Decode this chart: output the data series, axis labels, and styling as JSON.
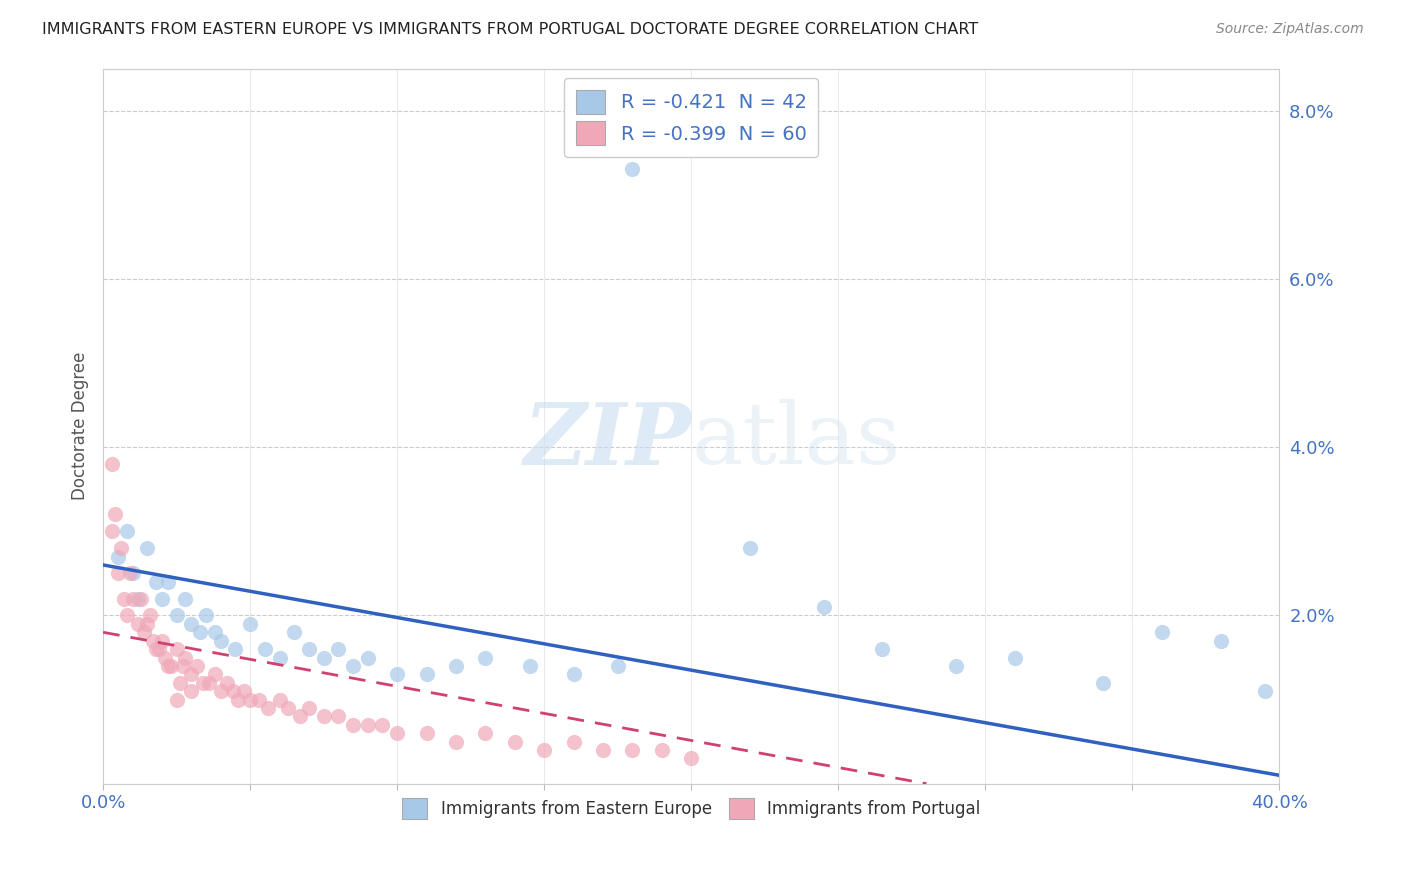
{
  "title": "IMMIGRANTS FROM EASTERN EUROPE VS IMMIGRANTS FROM PORTUGAL DOCTORATE DEGREE CORRELATION CHART",
  "source": "Source: ZipAtlas.com",
  "ylabel": "Doctorate Degree",
  "xlim": [
    0.0,
    0.4
  ],
  "ylim": [
    0.0,
    0.085
  ],
  "ytick_vals": [
    0.0,
    0.02,
    0.04,
    0.06,
    0.08
  ],
  "ytick_labels": [
    "",
    "2.0%",
    "4.0%",
    "6.0%",
    "8.0%"
  ],
  "xtick_vals": [
    0.0,
    0.05,
    0.1,
    0.15,
    0.2,
    0.25,
    0.3,
    0.35,
    0.4
  ],
  "xtick_labels": [
    "0.0%",
    "",
    "",
    "",
    "",
    "",
    "",
    "",
    "40.0%"
  ],
  "legend1_label": "R = -0.421  N = 42",
  "legend2_label": "R = -0.399  N = 60",
  "legend_bottom1": "Immigrants from Eastern Europe",
  "legend_bottom2": "Immigrants from Portugal",
  "blue_color": "#a8c8e8",
  "pink_color": "#f0a8b8",
  "blue_line_color": "#3060c0",
  "pink_line_color": "#d04070",
  "watermark_zip": "ZIP",
  "watermark_atlas": "atlas",
  "blue_scatter": [
    [
      0.005,
      0.027
    ],
    [
      0.008,
      0.03
    ],
    [
      0.01,
      0.025
    ],
    [
      0.012,
      0.022
    ],
    [
      0.015,
      0.028
    ],
    [
      0.018,
      0.024
    ],
    [
      0.02,
      0.022
    ],
    [
      0.022,
      0.024
    ],
    [
      0.025,
      0.02
    ],
    [
      0.028,
      0.022
    ],
    [
      0.03,
      0.019
    ],
    [
      0.033,
      0.018
    ],
    [
      0.035,
      0.02
    ],
    [
      0.038,
      0.018
    ],
    [
      0.04,
      0.017
    ],
    [
      0.045,
      0.016
    ],
    [
      0.05,
      0.019
    ],
    [
      0.055,
      0.016
    ],
    [
      0.06,
      0.015
    ],
    [
      0.065,
      0.018
    ],
    [
      0.07,
      0.016
    ],
    [
      0.075,
      0.015
    ],
    [
      0.08,
      0.016
    ],
    [
      0.085,
      0.014
    ],
    [
      0.09,
      0.015
    ],
    [
      0.1,
      0.013
    ],
    [
      0.11,
      0.013
    ],
    [
      0.12,
      0.014
    ],
    [
      0.13,
      0.015
    ],
    [
      0.145,
      0.014
    ],
    [
      0.16,
      0.013
    ],
    [
      0.175,
      0.014
    ],
    [
      0.18,
      0.073
    ],
    [
      0.22,
      0.028
    ],
    [
      0.245,
      0.021
    ],
    [
      0.265,
      0.016
    ],
    [
      0.29,
      0.014
    ],
    [
      0.31,
      0.015
    ],
    [
      0.34,
      0.012
    ],
    [
      0.36,
      0.018
    ],
    [
      0.38,
      0.017
    ],
    [
      0.395,
      0.011
    ]
  ],
  "pink_scatter": [
    [
      0.003,
      0.03
    ],
    [
      0.005,
      0.025
    ],
    [
      0.007,
      0.022
    ],
    [
      0.008,
      0.02
    ],
    [
      0.01,
      0.022
    ],
    [
      0.012,
      0.019
    ],
    [
      0.014,
      0.018
    ],
    [
      0.015,
      0.019
    ],
    [
      0.017,
      0.017
    ],
    [
      0.018,
      0.016
    ],
    [
      0.02,
      0.017
    ],
    [
      0.021,
      0.015
    ],
    [
      0.023,
      0.014
    ],
    [
      0.025,
      0.016
    ],
    [
      0.027,
      0.014
    ],
    [
      0.028,
      0.015
    ],
    [
      0.03,
      0.013
    ],
    [
      0.032,
      0.014
    ],
    [
      0.034,
      0.012
    ],
    [
      0.036,
      0.012
    ],
    [
      0.038,
      0.013
    ],
    [
      0.04,
      0.011
    ],
    [
      0.042,
      0.012
    ],
    [
      0.044,
      0.011
    ],
    [
      0.046,
      0.01
    ],
    [
      0.048,
      0.011
    ],
    [
      0.05,
      0.01
    ],
    [
      0.053,
      0.01
    ],
    [
      0.056,
      0.009
    ],
    [
      0.06,
      0.01
    ],
    [
      0.063,
      0.009
    ],
    [
      0.067,
      0.008
    ],
    [
      0.07,
      0.009
    ],
    [
      0.075,
      0.008
    ],
    [
      0.08,
      0.008
    ],
    [
      0.085,
      0.007
    ],
    [
      0.09,
      0.007
    ],
    [
      0.095,
      0.007
    ],
    [
      0.1,
      0.006
    ],
    [
      0.11,
      0.006
    ],
    [
      0.12,
      0.005
    ],
    [
      0.13,
      0.006
    ],
    [
      0.14,
      0.005
    ],
    [
      0.15,
      0.004
    ],
    [
      0.16,
      0.005
    ],
    [
      0.17,
      0.004
    ],
    [
      0.18,
      0.004
    ],
    [
      0.19,
      0.004
    ],
    [
      0.2,
      0.003
    ],
    [
      0.003,
      0.038
    ],
    [
      0.004,
      0.032
    ],
    [
      0.006,
      0.028
    ],
    [
      0.009,
      0.025
    ],
    [
      0.013,
      0.022
    ],
    [
      0.016,
      0.02
    ],
    [
      0.019,
      0.016
    ],
    [
      0.022,
      0.014
    ],
    [
      0.026,
      0.012
    ],
    [
      0.025,
      0.01
    ],
    [
      0.03,
      0.011
    ]
  ],
  "blue_line_x": [
    0.0,
    0.4
  ],
  "blue_line_y": [
    0.026,
    0.001
  ],
  "pink_line_x": [
    0.0,
    0.28
  ],
  "pink_line_y": [
    0.018,
    0.0
  ]
}
